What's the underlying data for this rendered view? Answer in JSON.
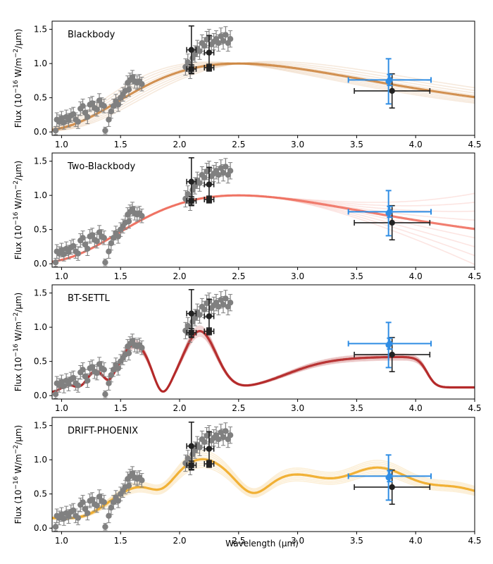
{
  "figure": {
    "xlabel": "Wavelength (μm)",
    "ylabel_prefix": "Flux (10",
    "ylabel_sup": "−16",
    "ylabel_mid": " W/m",
    "ylabel_sup2": "−2",
    "ylabel_suffix": "/μm)"
  },
  "chart_data": [
    {
      "type": "line",
      "title": "Blackbody",
      "model": "blackbody",
      "color": "#cd853f",
      "xlim": [
        0.92,
        4.5
      ],
      "ylim": [
        -0.05,
        1.62
      ],
      "xticks": [
        "1.0",
        "1.5",
        "2.0",
        "2.5",
        "3.0",
        "3.5",
        "4.0",
        "4.5"
      ],
      "yticks": [
        "0.0",
        "0.5",
        "1.0",
        "1.5"
      ],
      "xlabel": "",
      "ylabel": "Flux"
    },
    {
      "type": "line",
      "title": "Two-Blackbody",
      "model": "twobb",
      "color": "#f07060",
      "xlim": [
        0.92,
        4.5
      ],
      "ylim": [
        -0.05,
        1.62
      ],
      "xticks": [
        "1.0",
        "1.5",
        "2.0",
        "2.5",
        "3.0",
        "3.5",
        "4.0",
        "4.5"
      ],
      "yticks": [
        "0.0",
        "0.5",
        "1.0",
        "1.5"
      ],
      "xlabel": "",
      "ylabel": "Flux"
    },
    {
      "type": "line",
      "title": "BT-SETTL",
      "model": "btsettl",
      "color": "#b22222",
      "xlim": [
        0.92,
        4.5
      ],
      "ylim": [
        -0.05,
        1.62
      ],
      "xticks": [
        "1.0",
        "1.5",
        "2.0",
        "2.5",
        "3.0",
        "3.5",
        "4.0",
        "4.5"
      ],
      "yticks": [
        "0.0",
        "0.5",
        "1.0",
        "1.5"
      ],
      "xlabel": "",
      "ylabel": "Flux"
    },
    {
      "type": "line",
      "title": "DRIFT-PHOENIX",
      "model": "drift",
      "color": "#f0a820",
      "xlim": [
        0.92,
        4.5
      ],
      "ylim": [
        -0.05,
        1.62
      ],
      "xticks": [
        "1.0",
        "1.5",
        "2.0",
        "2.5",
        "3.0",
        "3.5",
        "4.0",
        "4.5"
      ],
      "yticks": [
        "0.0",
        "0.5",
        "1.0",
        "1.5"
      ],
      "xlabel": "Wavelength (μm)",
      "ylabel": "Flux"
    }
  ],
  "observations": {
    "spectrum_color": "#808080",
    "spectrum": [
      [
        0.95,
        0.02,
        0.06
      ],
      [
        0.96,
        0.18,
        0.1
      ],
      [
        0.98,
        0.15,
        0.1
      ],
      [
        1.0,
        0.2,
        0.1
      ],
      [
        1.02,
        0.14,
        0.1
      ],
      [
        1.04,
        0.22,
        0.1
      ],
      [
        1.06,
        0.17,
        0.1
      ],
      [
        1.08,
        0.24,
        0.1
      ],
      [
        1.1,
        0.26,
        0.1
      ],
      [
        1.12,
        0.18,
        0.1
      ],
      [
        1.14,
        0.15,
        0.1
      ],
      [
        1.16,
        0.34,
        0.1
      ],
      [
        1.18,
        0.38,
        0.1
      ],
      [
        1.2,
        0.28,
        0.1
      ],
      [
        1.22,
        0.22,
        0.1
      ],
      [
        1.24,
        0.4,
        0.1
      ],
      [
        1.26,
        0.42,
        0.1
      ],
      [
        1.28,
        0.35,
        0.1
      ],
      [
        1.3,
        0.33,
        0.1
      ],
      [
        1.32,
        0.46,
        0.1
      ],
      [
        1.34,
        0.4,
        0.1
      ],
      [
        1.36,
        0.38,
        0.1
      ],
      [
        1.37,
        0.02,
        0.05
      ],
      [
        1.4,
        0.18,
        0.1
      ],
      [
        1.42,
        0.3,
        0.1
      ],
      [
        1.44,
        0.38,
        0.1
      ],
      [
        1.46,
        0.45,
        0.1
      ],
      [
        1.48,
        0.4,
        0.1
      ],
      [
        1.5,
        0.5,
        0.1
      ],
      [
        1.52,
        0.55,
        0.1
      ],
      [
        1.54,
        0.6,
        0.1
      ],
      [
        1.56,
        0.72,
        0.1
      ],
      [
        1.57,
        0.62,
        0.1
      ],
      [
        1.58,
        0.76,
        0.1
      ],
      [
        1.6,
        0.8,
        0.1
      ],
      [
        1.62,
        0.74,
        0.1
      ],
      [
        1.64,
        0.72,
        0.1
      ],
      [
        1.66,
        0.74,
        0.1
      ],
      [
        1.68,
        0.7,
        0.1
      ],
      [
        2.05,
        0.95,
        0.12
      ],
      [
        2.07,
        1.02,
        0.12
      ],
      [
        2.09,
        0.9,
        0.12
      ],
      [
        2.11,
        1.08,
        0.12
      ],
      [
        2.13,
        1.14,
        0.12
      ],
      [
        2.15,
        1.22,
        0.12
      ],
      [
        2.17,
        1.18,
        0.12
      ],
      [
        2.19,
        1.3,
        0.12
      ],
      [
        2.21,
        1.26,
        0.12
      ],
      [
        2.23,
        1.35,
        0.12
      ],
      [
        2.25,
        1.38,
        0.12
      ],
      [
        2.27,
        1.28,
        0.12
      ],
      [
        2.29,
        1.32,
        0.12
      ],
      [
        2.31,
        1.36,
        0.12
      ],
      [
        2.33,
        1.3,
        0.12
      ],
      [
        2.35,
        1.4,
        0.12
      ],
      [
        2.37,
        1.33,
        0.12
      ],
      [
        2.39,
        1.42,
        0.12
      ],
      [
        2.41,
        1.3,
        0.12
      ],
      [
        2.43,
        1.36,
        0.12
      ]
    ],
    "photometry_color": "#222222",
    "photometry": [
      {
        "x": 2.1,
        "y": 1.2,
        "xerr": 0.04,
        "yerr": 0.35
      },
      {
        "x": 2.1,
        "y": 0.92,
        "xerr": 0.04,
        "yerr": 0.06,
        "marker": "square"
      },
      {
        "x": 2.25,
        "y": 1.16,
        "xerr": 0.04,
        "yerr": 0.25
      },
      {
        "x": 2.25,
        "y": 0.94,
        "xerr": 0.04,
        "yerr": 0.05,
        "marker": "square"
      },
      {
        "x": 3.8,
        "y": 0.6,
        "xerr": 0.32,
        "yerr": 0.25
      }
    ],
    "lp_color": "#2f8de4",
    "lp": [
      {
        "x": 3.78,
        "y": 0.76,
        "xerr": 0.35,
        "yerr": 0.08
      },
      {
        "x": 3.77,
        "y": 0.74,
        "xerr": 0.0,
        "yerr": 0.33
      }
    ]
  }
}
